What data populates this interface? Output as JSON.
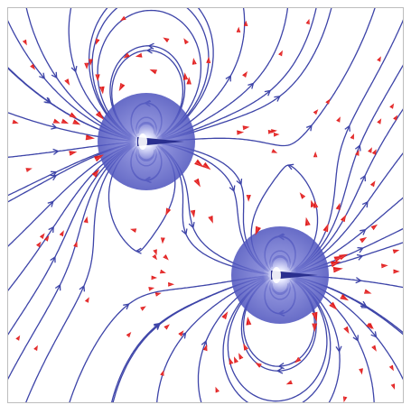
{
  "figure": {
    "background": "#ffffff",
    "frame_color": "#bdbdbd",
    "field_line_color": "#3d44a8",
    "sphere_color": "#5a5fc4",
    "sphere_highlight": "#eef0ff",
    "moment_arrow_color": "#2a2f8f",
    "small_arrow_color": "#e02020",
    "small_arrow_highlight": "#ff7a7a"
  },
  "dipoles": [
    {
      "name": "dipole-upper-left",
      "moment_direction": "right"
    },
    {
      "name": "dipole-lower-right",
      "moment_direction": "right"
    }
  ],
  "icons": {
    "dipole": "sphere-icon",
    "moment": "moment-arrow-icon",
    "field_sample": "red-cone-arrow-icon"
  }
}
